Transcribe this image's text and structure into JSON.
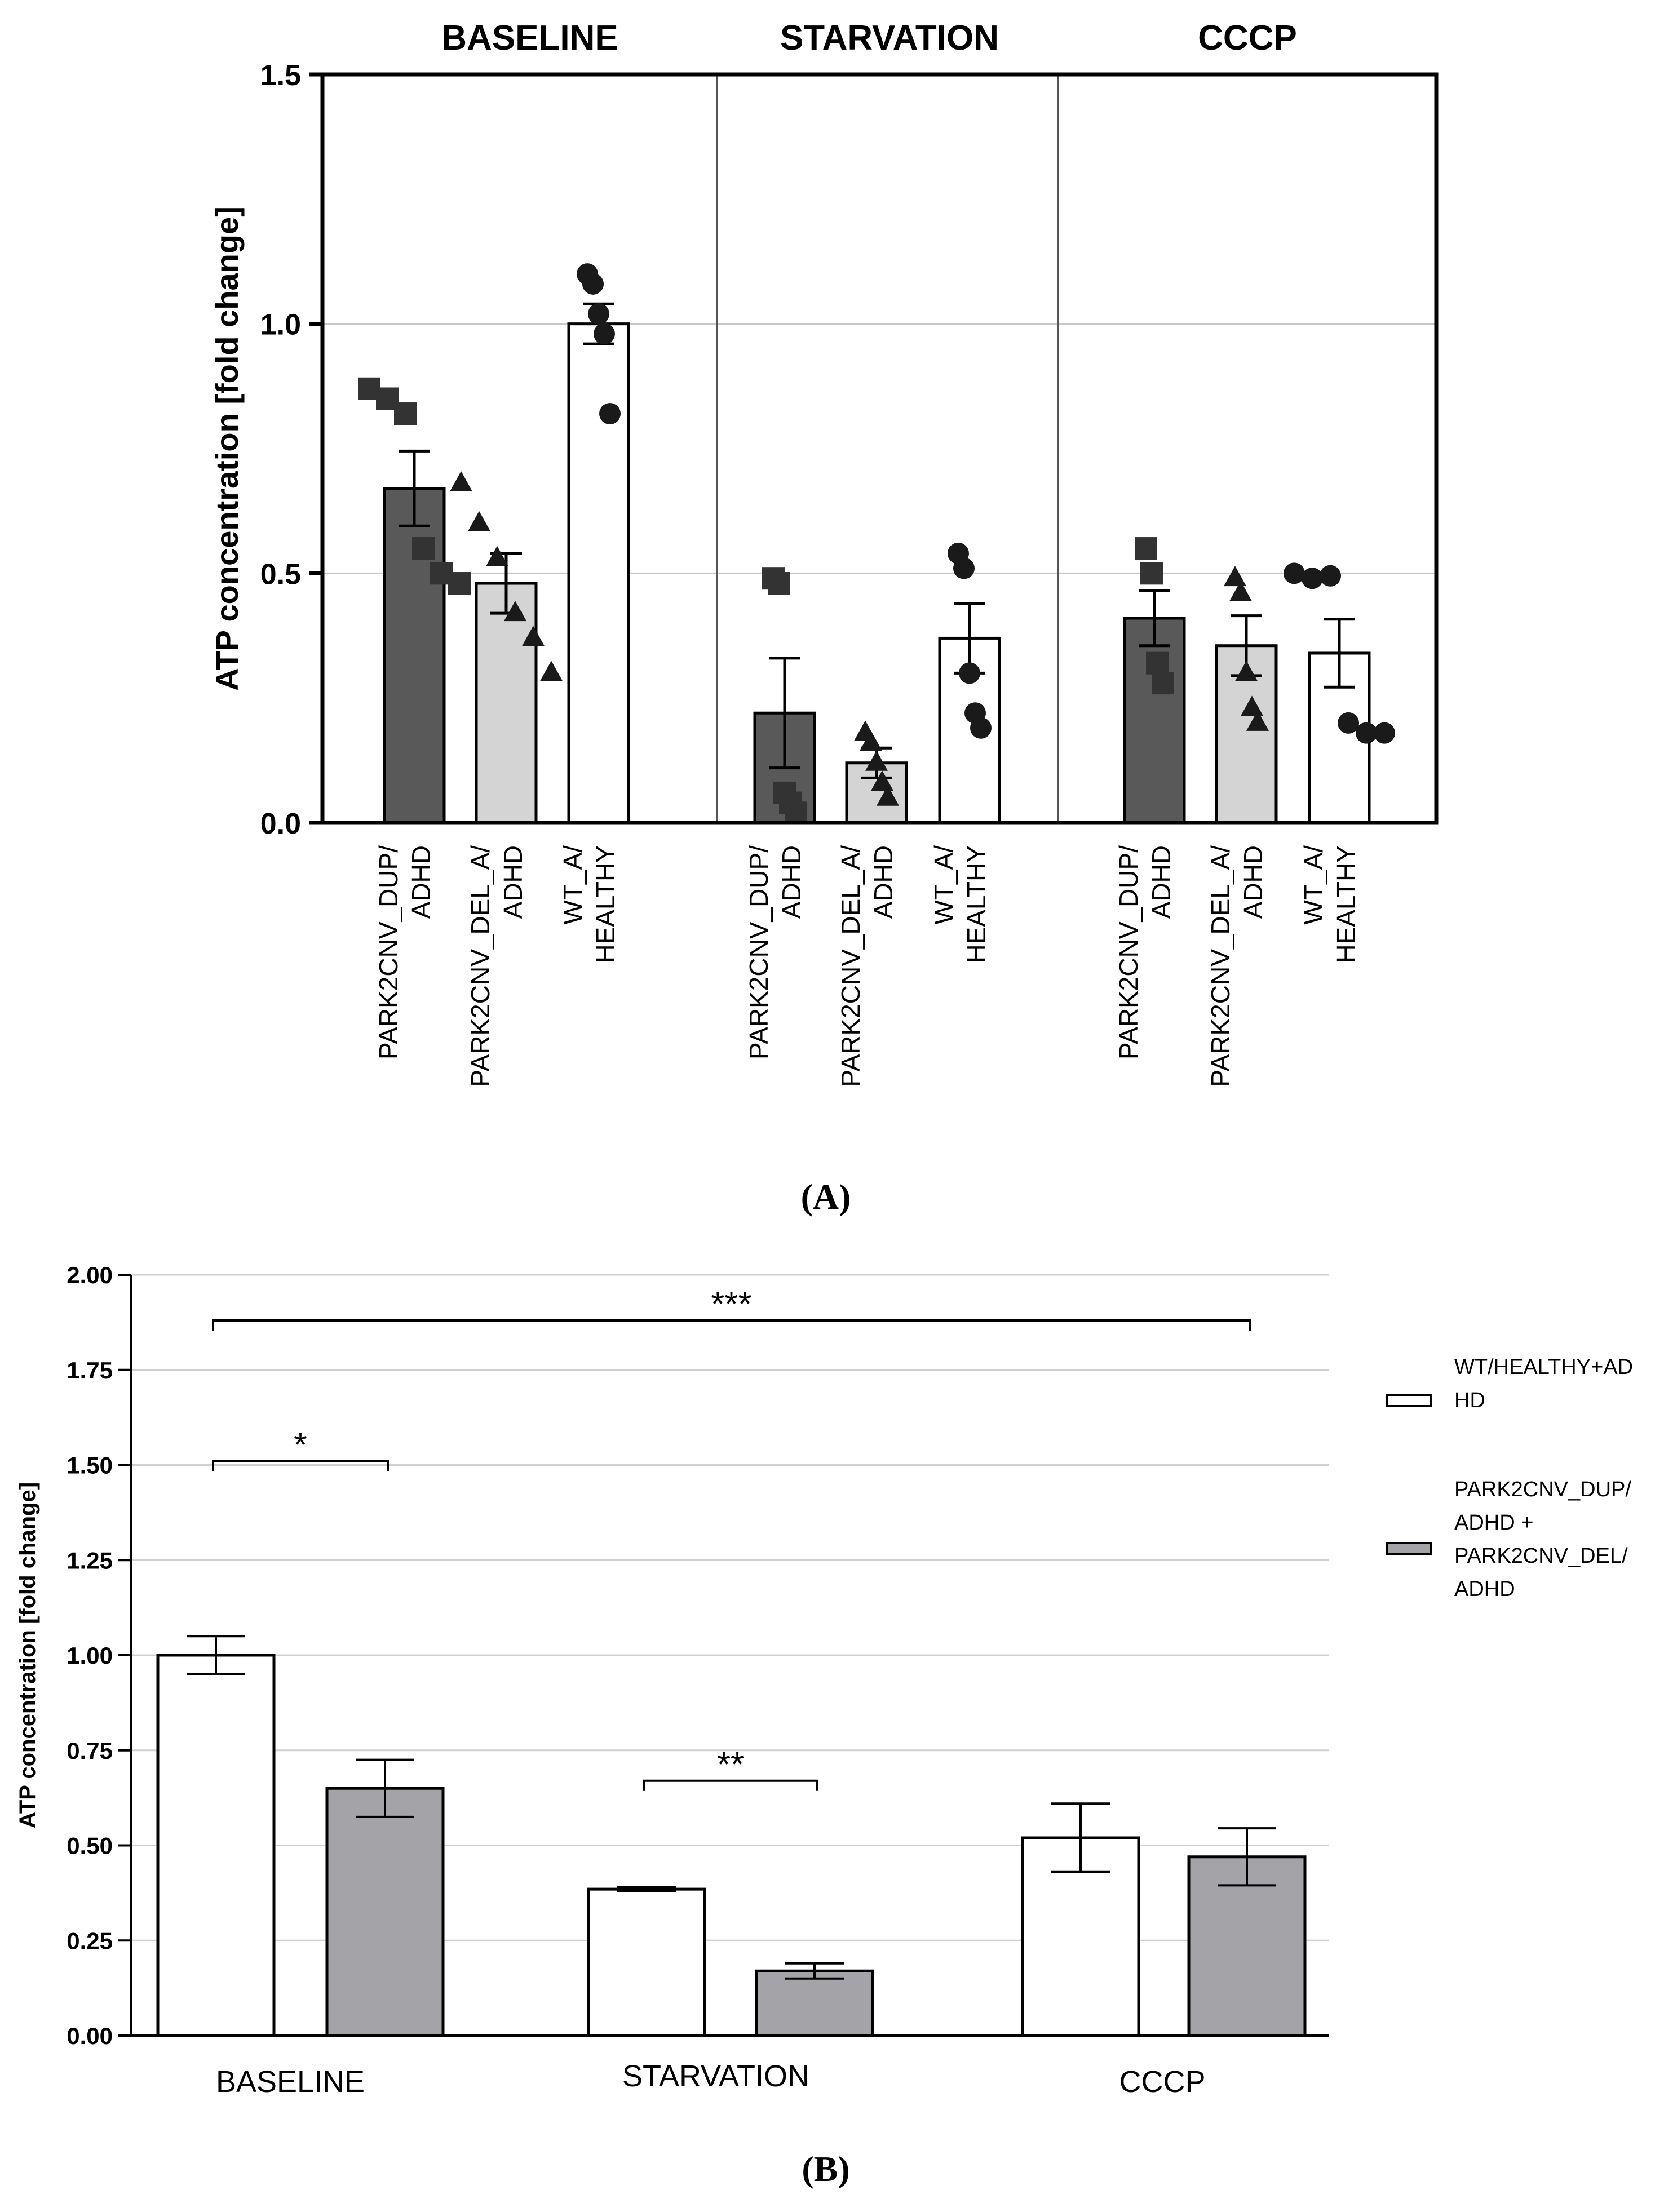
{
  "panels": {
    "a_label": "(A)",
    "b_label": "(B)"
  },
  "chart_data": [
    {
      "type": "bar",
      "panel": "A",
      "ylabel": "ATP concentration [fold change]",
      "ylim": [
        0,
        1.5
      ],
      "yticks": [
        0.0,
        0.5,
        1.0,
        1.5
      ],
      "ytick_labels": [
        "0.0",
        "0.5",
        "1.0",
        "1.5"
      ],
      "grid": true,
      "groups": [
        {
          "title": "BASELINE",
          "bars": [
            {
              "label": [
                "PARK2CNV_DUP/",
                "ADHD"
              ],
              "fill": "#595959",
              "marker": "square",
              "mean": 0.67,
              "sem": 0.075,
              "points": [
                0.87,
                0.85,
                0.82,
                0.55,
                0.5,
                0.48
              ]
            },
            {
              "label": [
                "PARK2CNV_DEL_A/",
                "ADHD"
              ],
              "fill": "#d4d4d4",
              "marker": "triangle",
              "mean": 0.48,
              "sem": 0.06,
              "points": [
                0.68,
                0.6,
                0.53,
                0.42,
                0.37,
                0.3
              ]
            },
            {
              "label": [
                "WT_A/",
                "HEALTHY"
              ],
              "fill": "#ffffff",
              "marker": "circle",
              "mean": 1.0,
              "sem": 0.04,
              "points": [
                1.1,
                1.08,
                1.02,
                0.98,
                0.82
              ]
            }
          ]
        },
        {
          "title": "STARVATION",
          "bars": [
            {
              "label": [
                "PARK2CNV_DUP/",
                "ADHD"
              ],
              "fill": "#595959",
              "marker": "square",
              "mean": 0.22,
              "sem": 0.11,
              "points": [
                0.49,
                0.48,
                0.06,
                0.04,
                0.02
              ]
            },
            {
              "label": [
                "PARK2CNV_DEL_A/",
                "ADHD"
              ],
              "fill": "#d4d4d4",
              "marker": "triangle",
              "mean": 0.12,
              "sem": 0.03,
              "points": [
                0.18,
                0.16,
                0.12,
                0.08,
                0.05
              ]
            },
            {
              "label": [
                "WT_A/",
                "HEALTHY"
              ],
              "fill": "#ffffff",
              "marker": "circle",
              "mean": 0.37,
              "sem": 0.07,
              "points": [
                0.54,
                0.51,
                0.3,
                0.22,
                0.19
              ]
            }
          ]
        },
        {
          "title": "CCCP",
          "bars": [
            {
              "label": [
                "PARK2CNV_DUP/",
                "ADHD"
              ],
              "fill": "#595959",
              "marker": "square",
              "mean": 0.41,
              "sem": 0.055,
              "points": [
                0.55,
                0.5,
                0.32,
                0.28
              ]
            },
            {
              "label": [
                "PARK2CNV_DEL_A/",
                "ADHD"
              ],
              "fill": "#d4d4d4",
              "marker": "triangle",
              "mean": 0.355,
              "sem": 0.06,
              "points": [
                0.49,
                0.46,
                0.3,
                0.23,
                0.2
              ]
            },
            {
              "label": [
                "WT_A/",
                "HEALTHY"
              ],
              "fill": "#ffffff",
              "marker": "circle",
              "mean": 0.34,
              "sem": 0.068,
              "points": [
                0.5,
                0.49,
                0.495,
                0.2,
                0.18,
                0.18
              ]
            }
          ]
        }
      ]
    },
    {
      "type": "bar",
      "panel": "B",
      "ylabel": "ATP concentration [fold change]",
      "ylim": [
        0,
        2.0
      ],
      "yticks": [
        0.0,
        0.25,
        0.5,
        0.75,
        1.0,
        1.25,
        1.5,
        1.75,
        2.0
      ],
      "ytick_labels": [
        "0.00",
        "0.25",
        "0.50",
        "0.75",
        "1.00",
        "1.25",
        "1.50",
        "1.75",
        "2.00"
      ],
      "grid": true,
      "categories": [
        "BASELINE",
        "STARVATION",
        "CCCP"
      ],
      "series": [
        {
          "name": "WT/HEALTHY+ADHD",
          "legend_lines": [
            "WT/HEALTHY+AD",
            "HD"
          ],
          "fill": "#ffffff",
          "values": [
            1.0,
            0.385,
            0.52
          ],
          "errors": [
            0.05,
            0.005,
            0.09
          ]
        },
        {
          "name": "PARK2CNV_DUP/ADHD + PARK2CNV_DEL/ADHD",
          "legend_lines": [
            "PARK2CNV_DUP/",
            "ADHD +",
            "PARK2CNV_DEL/",
            "ADHD"
          ],
          "fill": "#a3a3a8",
          "values": [
            0.65,
            0.17,
            0.47
          ],
          "errors": [
            0.075,
            0.02,
            0.075
          ]
        }
      ],
      "legend": "right",
      "significance": [
        {
          "label": "***",
          "from": "BASELINE:WT",
          "to": "CCCP:PARK2",
          "y": 1.88
        },
        {
          "label": "*",
          "from": "BASELINE:WT",
          "to": "BASELINE:PARK2",
          "y": 1.51
        },
        {
          "label": "**",
          "from": "STARVATION:WT",
          "to": "STARVATION:PARK2",
          "y": 0.67
        }
      ]
    }
  ]
}
